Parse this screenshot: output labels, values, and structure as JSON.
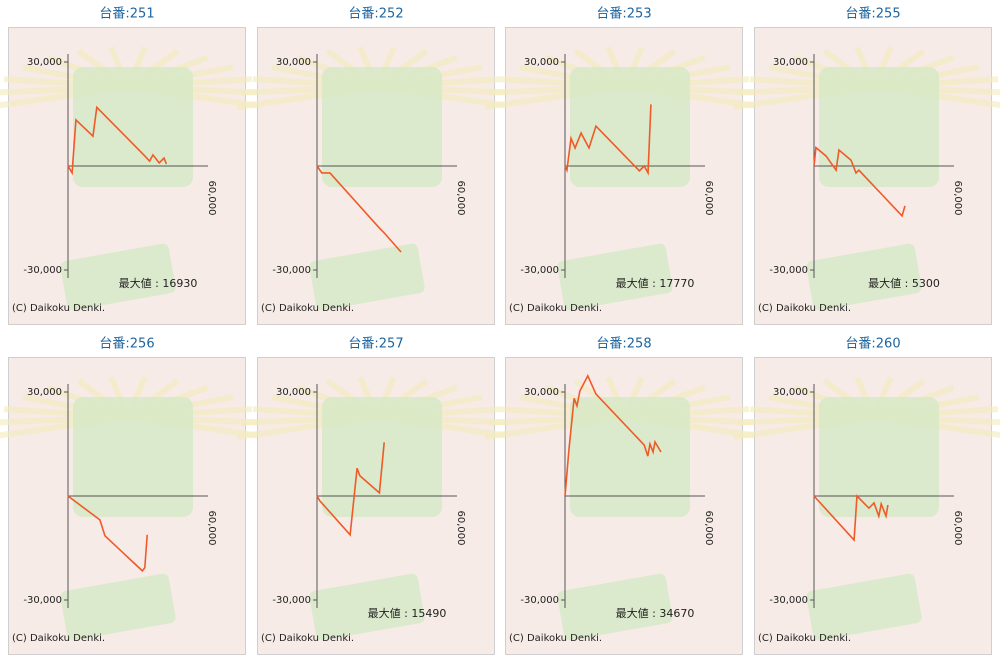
{
  "chart_data": [
    {
      "type": "line",
      "title": "台番:251",
      "color": "#f05a28",
      "xlim": [
        0,
        60000
      ],
      "ylim": [
        -30000,
        30000
      ],
      "xticks": [
        {
          "value": 60000,
          "label": "60,000"
        }
      ],
      "yticks": [
        {
          "value": 30000,
          "label": "30,000"
        },
        {
          "value": -30000,
          "label": "-30,000"
        }
      ],
      "x": [
        0,
        1700,
        3300,
        10400,
        12000,
        32000,
        34000,
        35400,
        38000,
        40000,
        41000
      ],
      "values": [
        0,
        -2000,
        13300,
        8600,
        16930,
        2900,
        1400,
        3200,
        900,
        2300,
        600
      ],
      "annotation": "最大値 : 16930",
      "credit": "(C) Daikoku Denki."
    },
    {
      "type": "line",
      "title": "台番:252",
      "color": "#f05a28",
      "xlim": [
        0,
        60000
      ],
      "ylim": [
        -30000,
        30000
      ],
      "xticks": [
        {
          "value": 60000,
          "label": "60,000"
        }
      ],
      "yticks": [
        {
          "value": 30000,
          "label": "30,000"
        },
        {
          "value": -30000,
          "label": "-30,000"
        }
      ],
      "x": [
        0,
        2000,
        5400,
        26000,
        28000,
        35000
      ],
      "values": [
        0,
        -2000,
        -2000,
        -17900,
        -19300,
        -24800
      ],
      "credit": "(C) Daikoku Denki."
    },
    {
      "type": "line",
      "title": "台番:253",
      "color": "#f05a28",
      "xlim": [
        0,
        60000
      ],
      "ylim": [
        -30000,
        30000
      ],
      "xticks": [
        {
          "value": 60000,
          "label": "60,000"
        }
      ],
      "yticks": [
        {
          "value": 30000,
          "label": "30,000"
        },
        {
          "value": -30000,
          "label": "-30,000"
        }
      ],
      "x": [
        0,
        800,
        2500,
        4200,
        6700,
        10000,
        12900,
        31000,
        33000,
        34600,
        35800
      ],
      "values": [
        0,
        -1200,
        8000,
        5200,
        9500,
        5200,
        11500,
        -1400,
        0,
        -2000,
        17770
      ],
      "annotation": "最大値 : 17770",
      "credit": "(C) Daikoku Denki."
    },
    {
      "type": "line",
      "title": "台番:255",
      "color": "#f05a28",
      "xlim": [
        0,
        60000
      ],
      "ylim": [
        -30000,
        30000
      ],
      "xticks": [
        {
          "value": 60000,
          "label": "60,000"
        }
      ],
      "yticks": [
        {
          "value": 30000,
          "label": "30,000"
        },
        {
          "value": -30000,
          "label": "-30,000"
        }
      ],
      "x": [
        0,
        800,
        5000,
        9200,
        10400,
        15400,
        17500,
        18700,
        36700,
        37900
      ],
      "values": [
        0,
        5300,
        2900,
        -1200,
        4600,
        1700,
        -2000,
        -1200,
        -14400,
        -11500
      ],
      "annotation": "最大値 : 5300",
      "credit": "(C) Daikoku Denki."
    },
    {
      "type": "line",
      "title": "台番:256",
      "color": "#f05a28",
      "xlim": [
        0,
        60000
      ],
      "ylim": [
        -30000,
        30000
      ],
      "xticks": [
        {
          "value": 60000,
          "label": "60,000"
        }
      ],
      "yticks": [
        {
          "value": 30000,
          "label": "30,000"
        },
        {
          "value": -30000,
          "label": "-30,000"
        }
      ],
      "x": [
        0,
        13300,
        15400,
        31000,
        32000,
        33000
      ],
      "values": [
        0,
        -6900,
        -11500,
        -21600,
        -20700,
        -11200
      ],
      "credit": "(C) Daikoku Denki."
    },
    {
      "type": "line",
      "title": "台番:257",
      "color": "#f05a28",
      "xlim": [
        0,
        60000
      ],
      "ylim": [
        -30000,
        30000
      ],
      "xticks": [
        {
          "value": 60000,
          "label": "60,000"
        }
      ],
      "yticks": [
        {
          "value": 30000,
          "label": "30,000"
        },
        {
          "value": -30000,
          "label": "-30,000"
        }
      ],
      "x": [
        0,
        1200,
        13800,
        16700,
        17900,
        26000,
        28000
      ],
      "values": [
        0,
        -1400,
        -11200,
        8000,
        5800,
        900,
        15490
      ],
      "annotation": "最大値 : 15490",
      "credit": "(C) Daikoku Denki."
    },
    {
      "type": "line",
      "title": "台番:258",
      "color": "#f05a28",
      "xlim": [
        0,
        60000
      ],
      "ylim": [
        -30000,
        30000
      ],
      "xticks": [
        {
          "value": 60000,
          "label": "60,000"
        }
      ],
      "yticks": [
        {
          "value": 30000,
          "label": "30,000"
        },
        {
          "value": -30000,
          "label": "-30,000"
        }
      ],
      "x": [
        0,
        1700,
        3800,
        5000,
        6200,
        9500,
        12900,
        33000,
        34500,
        35400,
        36700,
        37500,
        40000
      ],
      "values": [
        0,
        13800,
        28200,
        26000,
        30300,
        34670,
        29400,
        14700,
        11500,
        15000,
        12700,
        15600,
        12700
      ],
      "annotation": "最大値 : 34670",
      "credit": "(C) Daikoku Denki."
    },
    {
      "type": "line",
      "title": "台番:260",
      "color": "#f05a28",
      "xlim": [
        0,
        60000
      ],
      "ylim": [
        -30000,
        30000
      ],
      "xticks": [
        {
          "value": 60000,
          "label": "60,000"
        }
      ],
      "yticks": [
        {
          "value": 30000,
          "label": "30,000"
        },
        {
          "value": -30000,
          "label": "-30,000"
        }
      ],
      "x": [
        0,
        16700,
        17900,
        22900,
        25000,
        27000,
        28000,
        30000,
        30800
      ],
      "values": [
        0,
        -12700,
        0,
        -3500,
        -2000,
        -5800,
        -2300,
        -5800,
        -2600
      ],
      "credit": "(C) Daikoku Denki."
    }
  ]
}
